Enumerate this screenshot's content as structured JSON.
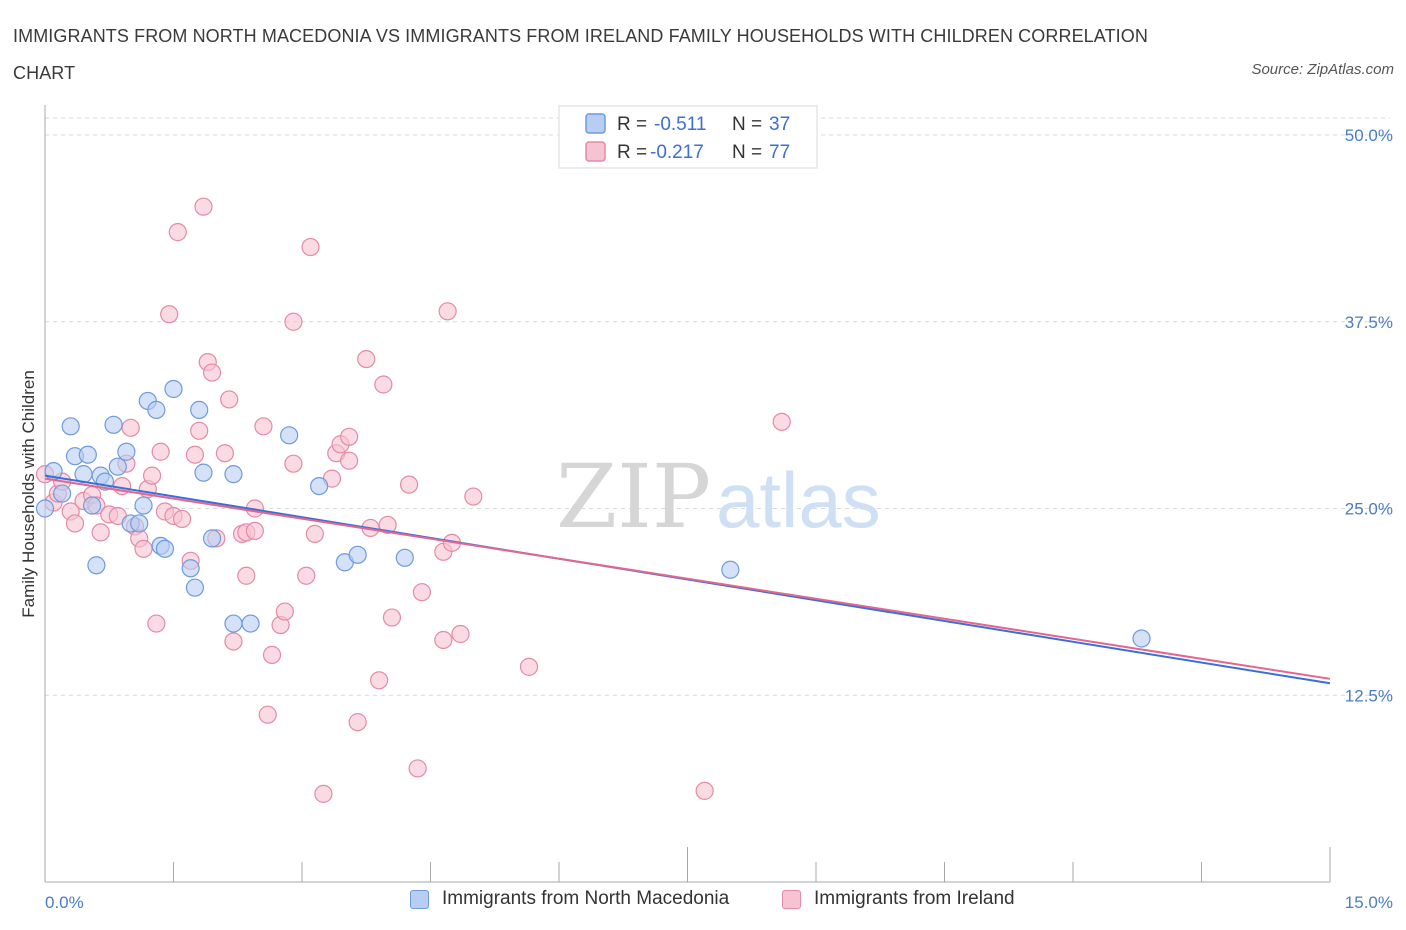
{
  "header": {
    "title": "IMMIGRANTS FROM NORTH MACEDONIA VS IMMIGRANTS FROM IRELAND FAMILY HOUSEHOLDS WITH CHILDREN CORRELATION CHART",
    "source": "Source: ZipAtlas.com"
  },
  "watermark": {
    "zip": "ZIP",
    "atlas": "atlas"
  },
  "legend": {
    "rows": [
      {
        "r_label": "R =",
        "r_value": "-0.511",
        "n_label": "N =",
        "n_value": "37"
      },
      {
        "r_label": "R =",
        "r_value": "-0.217",
        "n_label": "N =",
        "n_value": "77"
      }
    ]
  },
  "bottom_legend": {
    "series1": "Immigrants from North Macedonia",
    "series2": "Immigrants from Ireland"
  },
  "colors": {
    "blue_fill": "#b7cdf2",
    "blue_stroke": "#6e9ae0",
    "blue_line": "#3a6fd6",
    "pink_fill": "#f6c3d2",
    "pink_stroke": "#e58aa6",
    "pink_line": "#e2668f",
    "grid": "#d9d9d9",
    "axis_label": "#4a7cc7"
  },
  "chart_data": {
    "type": "scatter",
    "title": "IMMIGRANTS FROM NORTH MACEDONIA VS IMMIGRANTS FROM IRELAND FAMILY HOUSEHOLDS WITH CHILDREN CORRELATION CHART",
    "xlabel": "",
    "ylabel": "Family Households with Children",
    "xlim": [
      0,
      15
    ],
    "ylim": [
      0,
      50
    ],
    "x_tick_labels": [
      "0.0%",
      "15.0%"
    ],
    "y_ticks": [
      12.5,
      25.0,
      37.5,
      50.0
    ],
    "y_tick_labels": [
      "12.5%",
      "25.0%",
      "37.5%",
      "50.0%"
    ],
    "grid": true,
    "legend_position": "top-center",
    "series": [
      {
        "name": "Immigrants from North Macedonia",
        "R": -0.511,
        "N": 37,
        "trend": {
          "x": [
            0,
            15
          ],
          "y": [
            27.2,
            13.3
          ]
        },
        "points": [
          [
            0.0,
            25.0
          ],
          [
            0.1,
            27.5
          ],
          [
            0.2,
            26.0
          ],
          [
            0.3,
            30.5
          ],
          [
            0.35,
            28.5
          ],
          [
            0.45,
            27.3
          ],
          [
            0.5,
            28.6
          ],
          [
            0.55,
            25.2
          ],
          [
            0.6,
            21.2
          ],
          [
            0.65,
            27.2
          ],
          [
            0.7,
            26.8
          ],
          [
            0.8,
            30.6
          ],
          [
            0.85,
            27.8
          ],
          [
            0.95,
            28.8
          ],
          [
            1.0,
            24.0
          ],
          [
            1.1,
            24.0
          ],
          [
            1.15,
            25.2
          ],
          [
            1.2,
            32.2
          ],
          [
            1.3,
            31.6
          ],
          [
            1.35,
            22.5
          ],
          [
            1.4,
            22.3
          ],
          [
            1.5,
            33.0
          ],
          [
            1.7,
            21.0
          ],
          [
            1.75,
            19.7
          ],
          [
            1.8,
            31.6
          ],
          [
            1.85,
            27.4
          ],
          [
            1.95,
            23.0
          ],
          [
            2.2,
            27.3
          ],
          [
            2.2,
            17.3
          ],
          [
            2.4,
            17.3
          ],
          [
            2.85,
            29.9
          ],
          [
            3.2,
            26.5
          ],
          [
            3.5,
            21.4
          ],
          [
            3.65,
            21.9
          ],
          [
            4.2,
            21.7
          ],
          [
            8.0,
            20.9
          ],
          [
            12.8,
            16.3
          ]
        ]
      },
      {
        "name": "Immigrants from Ireland",
        "R": -0.217,
        "N": 77,
        "trend": {
          "x": [
            0,
            15
          ],
          "y": [
            27.0,
            13.6
          ]
        },
        "points": [
          [
            0.0,
            27.3
          ],
          [
            0.1,
            25.4
          ],
          [
            0.15,
            26.0
          ],
          [
            0.2,
            26.8
          ],
          [
            0.3,
            24.8
          ],
          [
            0.35,
            24.0
          ],
          [
            0.45,
            25.5
          ],
          [
            0.55,
            25.9
          ],
          [
            0.6,
            25.2
          ],
          [
            0.65,
            23.4
          ],
          [
            0.75,
            24.6
          ],
          [
            0.85,
            24.5
          ],
          [
            0.9,
            26.5
          ],
          [
            0.95,
            28.0
          ],
          [
            1.0,
            30.4
          ],
          [
            1.05,
            23.8
          ],
          [
            1.1,
            23.0
          ],
          [
            1.15,
            22.3
          ],
          [
            1.2,
            26.3
          ],
          [
            1.25,
            27.2
          ],
          [
            1.3,
            17.3
          ],
          [
            1.35,
            28.8
          ],
          [
            1.4,
            24.8
          ],
          [
            1.5,
            24.5
          ],
          [
            1.6,
            24.3
          ],
          [
            1.55,
            43.5
          ],
          [
            1.45,
            38.0
          ],
          [
            1.7,
            21.5
          ],
          [
            1.75,
            28.6
          ],
          [
            1.8,
            30.2
          ],
          [
            1.85,
            45.2
          ],
          [
            1.9,
            34.8
          ],
          [
            1.95,
            34.1
          ],
          [
            2.0,
            23.0
          ],
          [
            2.1,
            28.7
          ],
          [
            2.15,
            32.3
          ],
          [
            2.2,
            16.1
          ],
          [
            2.3,
            23.3
          ],
          [
            2.35,
            20.5
          ],
          [
            2.35,
            23.4
          ],
          [
            2.45,
            23.5
          ],
          [
            2.55,
            30.5
          ],
          [
            2.6,
            11.2
          ],
          [
            2.65,
            15.2
          ],
          [
            2.75,
            17.2
          ],
          [
            2.8,
            18.1
          ],
          [
            2.9,
            37.5
          ],
          [
            2.9,
            28.0
          ],
          [
            3.05,
            20.5
          ],
          [
            3.1,
            42.5
          ],
          [
            3.15,
            23.3
          ],
          [
            3.25,
            5.9
          ],
          [
            3.35,
            27.0
          ],
          [
            3.4,
            28.7
          ],
          [
            3.45,
            29.3
          ],
          [
            3.55,
            29.8
          ],
          [
            3.65,
            10.7
          ],
          [
            3.75,
            35.0
          ],
          [
            3.8,
            23.7
          ],
          [
            3.9,
            13.5
          ],
          [
            3.95,
            33.3
          ],
          [
            4.0,
            23.9
          ],
          [
            4.05,
            17.7
          ],
          [
            4.25,
            26.6
          ],
          [
            4.35,
            7.6
          ],
          [
            4.4,
            19.4
          ],
          [
            4.65,
            22.1
          ],
          [
            4.65,
            16.2
          ],
          [
            4.7,
            38.2
          ],
          [
            4.75,
            22.7
          ],
          [
            4.85,
            16.6
          ],
          [
            5.0,
            25.8
          ],
          [
            5.65,
            14.4
          ],
          [
            7.7,
            6.1
          ],
          [
            8.6,
            30.8
          ],
          [
            3.55,
            28.2
          ],
          [
            2.45,
            25.0
          ]
        ]
      }
    ]
  }
}
